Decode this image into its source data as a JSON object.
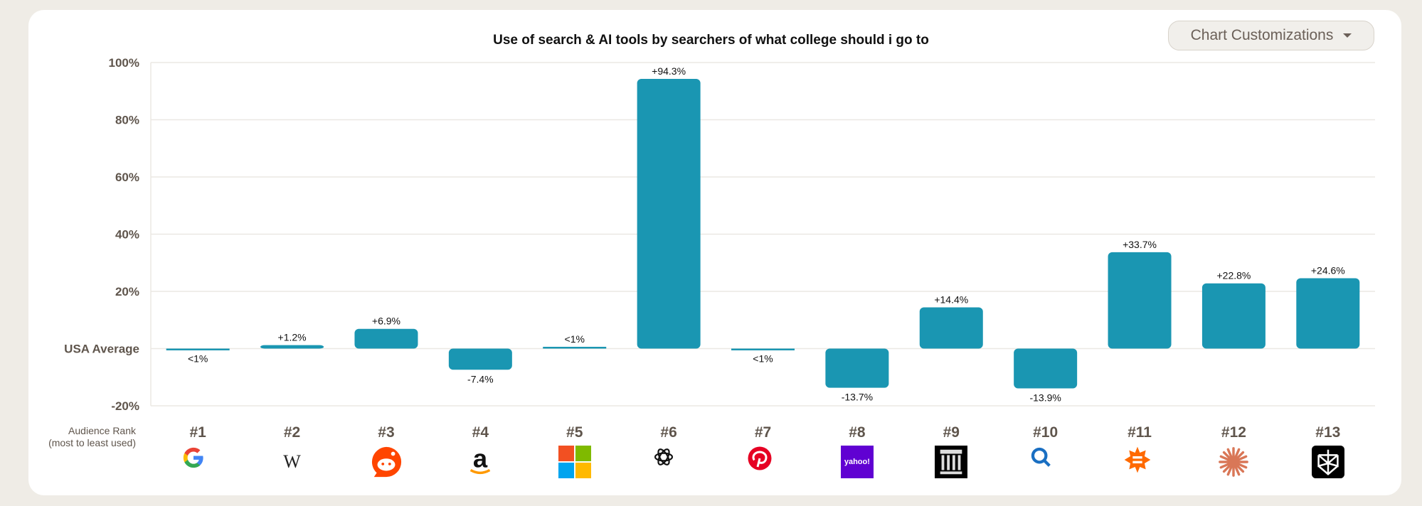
{
  "header": {
    "title": "Use of search & AI tools by searchers of what college should i go to",
    "customize_button": "Chart Customizations"
  },
  "axis": {
    "rank_label_line1": "Audience Rank",
    "rank_label_line2": "(most to least used)"
  },
  "colors": {
    "bar": "#1a96b2",
    "background": "#efece6"
  },
  "chart_data": {
    "type": "bar",
    "title": "Use of search & AI tools by searchers of what college should i go to",
    "ylim": [
      -20,
      100
    ],
    "yticks": [
      {
        "value": 100,
        "label": "100%"
      },
      {
        "value": 80,
        "label": "80%"
      },
      {
        "value": 60,
        "label": "60%"
      },
      {
        "value": 40,
        "label": "40%"
      },
      {
        "value": 20,
        "label": "20%"
      },
      {
        "value": 0,
        "label": "USA Average"
      },
      {
        "value": -20,
        "label": "-20%"
      }
    ],
    "grid": true,
    "categories": [
      "#1",
      "#2",
      "#3",
      "#4",
      "#5",
      "#6",
      "#7",
      "#8",
      "#9",
      "#10",
      "#11",
      "#12",
      "#13"
    ],
    "icons": [
      "google-icon",
      "wikipedia-icon",
      "reddit-icon",
      "amazon-icon",
      "microsoft-icon",
      "chatgpt-icon",
      "pinterest-icon",
      "yahoo-icon",
      "internet-archive-icon",
      "magnifier-search-icon",
      "orange-badge-icon",
      "claude-icon",
      "perplexity-icon"
    ],
    "values": [
      -0.3,
      1.2,
      6.9,
      -7.4,
      0.6,
      94.3,
      -0.3,
      -13.7,
      14.4,
      -13.9,
      33.7,
      22.8,
      24.6
    ],
    "labels": [
      "<1%",
      "+1.2%",
      "+6.9%",
      "-7.4%",
      "<1%",
      "+94.3%",
      "<1%",
      "-13.7%",
      "+14.4%",
      "-13.9%",
      "+33.7%",
      "+22.8%",
      "+24.6%"
    ]
  }
}
